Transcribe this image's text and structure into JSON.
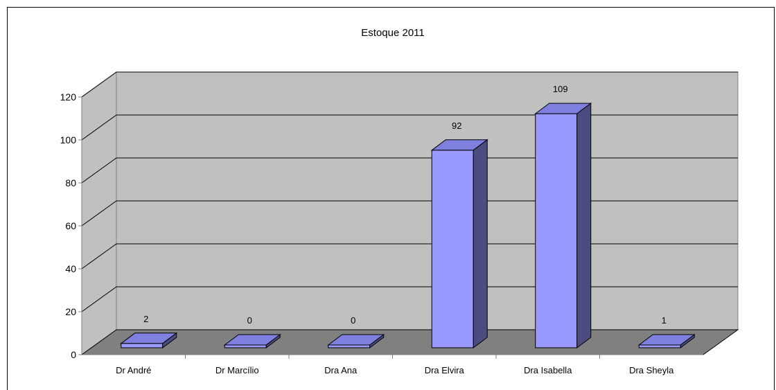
{
  "chart_data": {
    "type": "bar",
    "title": "Estoque 2011",
    "categories": [
      "Dr André",
      "Dr Marcílio",
      "Dra Ana",
      "Dra Elvira",
      "Dra Isabella",
      "Dra Sheyla"
    ],
    "values": [
      2,
      0,
      0,
      92,
      109,
      1
    ],
    "ylim": [
      0,
      120
    ],
    "yticks": [
      "0",
      "20",
      "40",
      "60",
      "80",
      "100",
      "120"
    ],
    "data_labels": [
      "2",
      "0",
      "0",
      "92",
      "109",
      "1"
    ],
    "grid": true,
    "three_d": true,
    "colors": {
      "bar_front": "#9999ff",
      "bar_top": "#7f7fdf",
      "bar_side": "#4c4c80",
      "back_wall": "#c0c0c0",
      "side_wall": "#c0c0c0",
      "floor": "#808080"
    }
  }
}
